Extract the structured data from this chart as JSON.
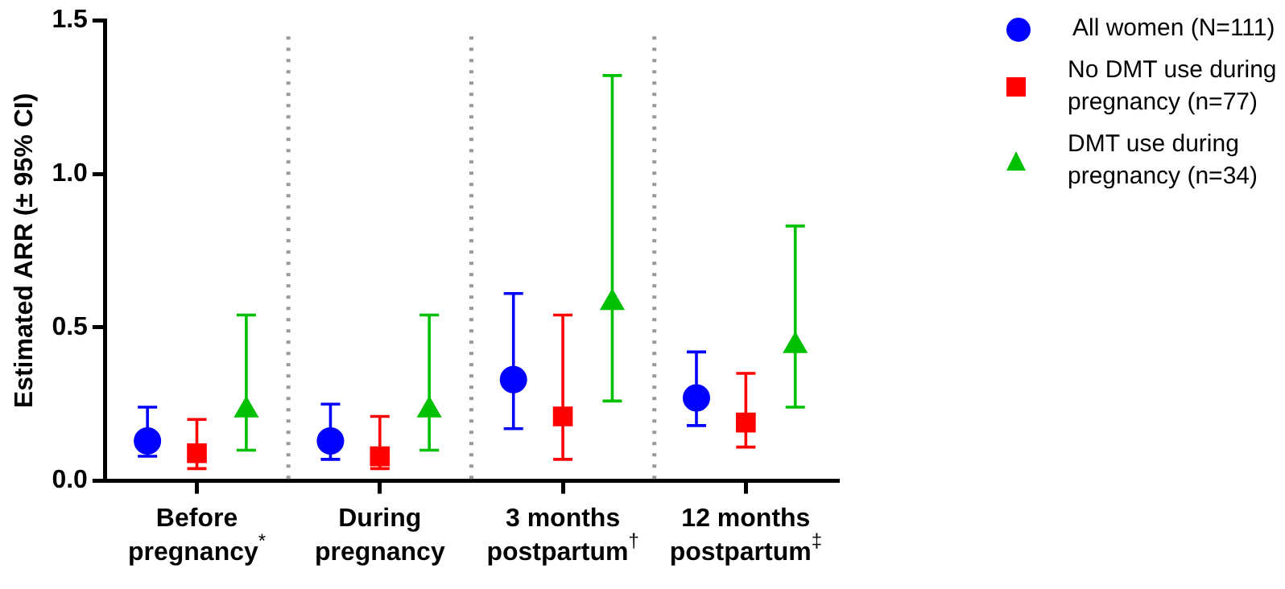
{
  "chart_data": {
    "type": "scatter",
    "ylabel": "Estimated ARR (± 95% CI)",
    "categories": [
      "Before pregnancy$^{*}$",
      "During pregnancy",
      "3 months postpartum$^{†}$",
      "12 months postpartum$^{‡}$"
    ],
    "ylim": [
      0,
      1.5
    ],
    "yticks": [
      {
        "value": 0,
        "label": "0.0"
      },
      {
        "value": 0.5,
        "label": "0.5"
      },
      {
        "value": 1,
        "label": "1.0"
      },
      {
        "value": 1.5,
        "label": "1.5"
      }
    ],
    "grid": "x",
    "legend": "top right",
    "series": [
      {
        "name": "All women (N=111)",
        "color": "#0000ff",
        "marker": "circle",
        "values": [
          0.13,
          0.13,
          0.33,
          0.27
        ],
        "errors": [
          [
            0.08,
            0.24
          ],
          [
            0.07,
            0.25
          ],
          [
            0.17,
            0.61
          ],
          [
            0.18,
            0.42
          ]
        ]
      },
      {
        "name": "No DMT use during pregnancy (n=77)",
        "color": "#ff0000",
        "marker": "square",
        "values": [
          0.09,
          0.08,
          0.21,
          0.19
        ],
        "errors": [
          [
            0.04,
            0.2
          ],
          [
            0.04,
            0.21
          ],
          [
            0.07,
            0.54
          ],
          [
            0.11,
            0.35
          ]
        ]
      },
      {
        "name": "DMT use during pregnancy (n=34)",
        "color": "#00c000",
        "marker": "triangle",
        "values": [
          0.23,
          0.23,
          0.58,
          0.44
        ],
        "errors": [
          [
            0.1,
            0.54
          ],
          [
            0.1,
            0.54
          ],
          [
            0.26,
            1.32
          ],
          [
            0.24,
            0.83
          ]
        ]
      }
    ]
  }
}
